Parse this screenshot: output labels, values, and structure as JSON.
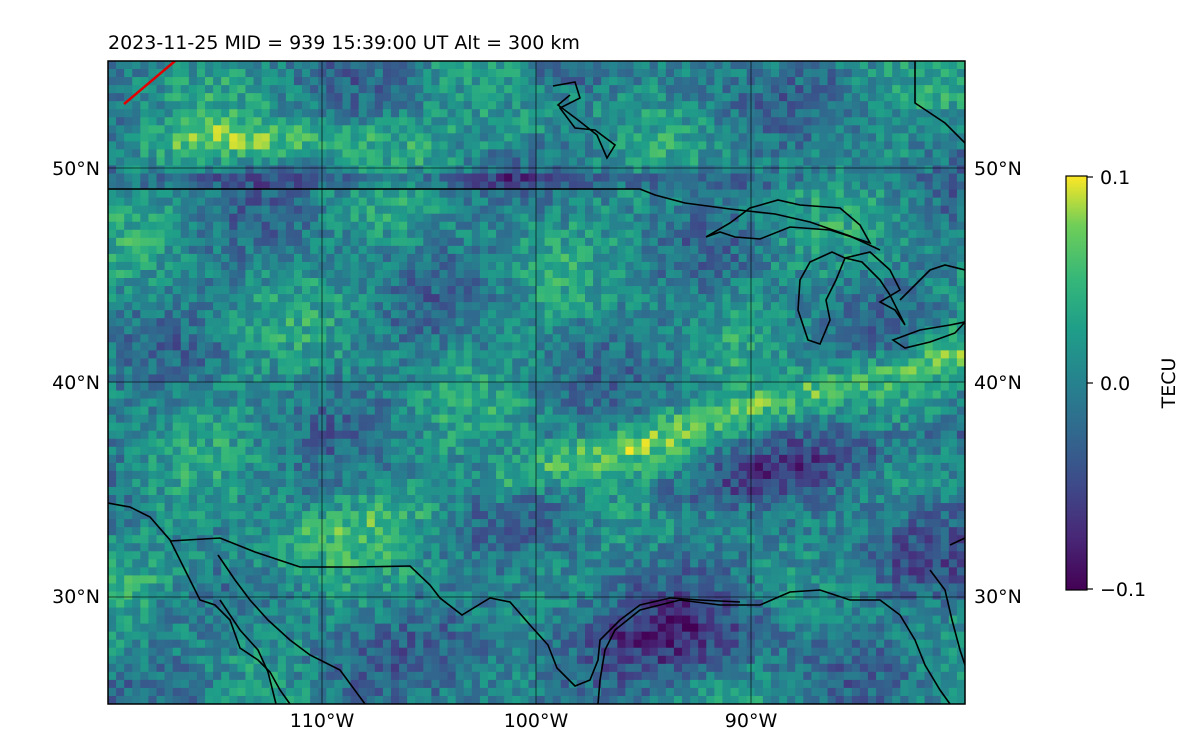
{
  "title": "2023-11-25  MID = 939    15:39:00  UT  Alt = 300 km",
  "map": {
    "lon_range": [
      -120,
      -80
    ],
    "lat_range": [
      25,
      55
    ],
    "lat_gridlines": [
      30,
      40,
      50
    ],
    "lon_gridlines": [
      -110,
      -100,
      -90
    ],
    "lat_labels": [
      "30°N",
      "40°N",
      "50°N"
    ],
    "lon_labels": [
      "110°W",
      "100°W",
      "90°W"
    ],
    "field_description": "Differential TEC anomaly field, viridis colormap; high-value streaks near 50°N and a southwest-to-northeast band from about 37°N 100°W to 42°N 82°W; low values along the Gulf coast near 28°N",
    "track_color": "#e00000"
  },
  "colorbar": {
    "label": "TECU",
    "ticks": [
      "0.1",
      "0.0",
      "−0.1"
    ],
    "tick_values": [
      0.1,
      0.0,
      -0.1
    ],
    "colormap": "viridis"
  }
}
